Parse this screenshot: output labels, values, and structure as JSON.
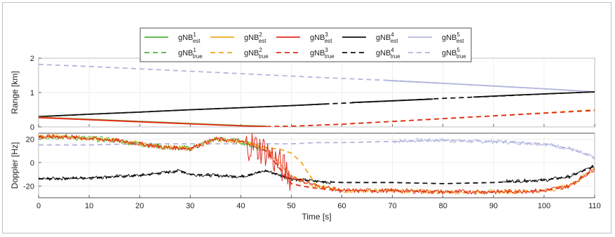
{
  "chart_data": [
    {
      "type": "line",
      "panel": "top",
      "ylabel": "Range [km]",
      "xlabel": "",
      "xlim": [
        0,
        110
      ],
      "ylim": [
        0,
        2
      ],
      "yticks": [
        0,
        1,
        2
      ],
      "xtick_labels_shown": false,
      "grid": true,
      "legend": {
        "placement": "top-center",
        "entries": [
          {
            "base": "gNB",
            "sup": "1",
            "sub": "est",
            "style": "solid",
            "color": "#4bb33a"
          },
          {
            "base": "gNB",
            "sup": "2",
            "sub": "est",
            "style": "solid",
            "color": "#f0a81c"
          },
          {
            "base": "gNB",
            "sup": "3",
            "sub": "est",
            "style": "solid",
            "color": "#e02b1b"
          },
          {
            "base": "gNB",
            "sup": "4",
            "sub": "est",
            "style": "solid",
            "color": "#111111"
          },
          {
            "base": "gNB",
            "sup": "5",
            "sub": "est",
            "style": "solid",
            "color": "#b3b6dd"
          },
          {
            "base": "gNB",
            "sup": "1",
            "sub": "true",
            "style": "dashed",
            "color": "#4bb33a"
          },
          {
            "base": "gNB",
            "sup": "2",
            "sub": "true",
            "style": "dashed",
            "color": "#f0a81c"
          },
          {
            "base": "gNB",
            "sup": "3",
            "sub": "true",
            "style": "dashed",
            "color": "#e02b1b"
          },
          {
            "base": "gNB",
            "sup": "4",
            "sub": "true",
            "style": "dashed",
            "color": "#111111"
          },
          {
            "base": "gNB",
            "sup": "5",
            "sub": "true",
            "style": "dashed",
            "color": "#b3b6dd"
          }
        ]
      },
      "series": [
        {
          "id": "r5_true",
          "style": "dashed",
          "color": "#b3b6dd",
          "x": [
            0,
            10,
            20,
            30,
            40,
            50,
            60,
            70,
            80,
            90,
            100,
            110
          ],
          "y": [
            1.82,
            1.76,
            1.69,
            1.62,
            1.55,
            1.48,
            1.41,
            1.35,
            1.27,
            1.19,
            1.11,
            1.02
          ]
        },
        {
          "id": "r5_est",
          "style": "solid",
          "color": "#b3b6dd",
          "x": [
            69,
            80,
            90,
            100,
            110
          ],
          "y": [
            1.35,
            1.27,
            1.19,
            1.11,
            1.02
          ]
        },
        {
          "id": "r4_true",
          "style": "dashed",
          "color": "#111111",
          "x": [
            0,
            10,
            20,
            30,
            40,
            50,
            60,
            70,
            80,
            90,
            100,
            110
          ],
          "y": [
            0.3,
            0.37,
            0.43,
            0.5,
            0.56,
            0.62,
            0.69,
            0.76,
            0.83,
            0.89,
            0.96,
            1.02
          ]
        },
        {
          "id": "r4_est",
          "style": "solid",
          "color": "#111111",
          "x": [
            0,
            10,
            20,
            30,
            40,
            50,
            57
          ],
          "y": [
            0.3,
            0.37,
            0.43,
            0.5,
            0.56,
            0.62,
            0.67
          ]
        },
        {
          "id": "r4_est_b",
          "style": "solid",
          "color": "#111111",
          "x": [
            62,
            70,
            78
          ],
          "y": [
            0.71,
            0.76,
            0.81
          ]
        },
        {
          "id": "r4_est_c",
          "style": "solid",
          "color": "#111111",
          "x": [
            86,
            95,
            105,
            110
          ],
          "y": [
            0.87,
            0.93,
            0.99,
            1.02
          ]
        },
        {
          "id": "r1_est",
          "style": "solid",
          "color": "#4bb33a",
          "x": [
            0,
            10,
            20,
            30,
            40,
            45
          ],
          "y": [
            0.28,
            0.22,
            0.16,
            0.1,
            0.04,
            0.02
          ]
        },
        {
          "id": "r2_est",
          "style": "solid",
          "color": "#f0a81c",
          "x": [
            0,
            10,
            20,
            30,
            40,
            45
          ],
          "y": [
            0.28,
            0.21,
            0.15,
            0.09,
            0.03,
            0.01
          ]
        },
        {
          "id": "r3_est",
          "style": "solid",
          "color": "#e02b1b",
          "x": [
            0,
            10,
            20,
            30,
            40,
            45
          ],
          "y": [
            0.27,
            0.21,
            0.15,
            0.09,
            0.03,
            0.01
          ]
        },
        {
          "id": "r2_true",
          "style": "dashed",
          "color": "#f0a81c",
          "x": [
            45,
            50,
            60,
            70,
            80,
            90,
            100,
            110
          ],
          "y": [
            0.01,
            0.02,
            0.08,
            0.16,
            0.24,
            0.32,
            0.41,
            0.5
          ]
        },
        {
          "id": "r3_true",
          "style": "dashed",
          "color": "#e02b1b",
          "x": [
            45,
            50,
            60,
            70,
            80,
            90,
            100,
            110
          ],
          "y": [
            0.01,
            0.02,
            0.08,
            0.16,
            0.24,
            0.32,
            0.4,
            0.48
          ]
        }
      ]
    },
    {
      "type": "line",
      "panel": "bottom",
      "ylabel": "Doppler [Hz]",
      "xlabel": "Time [s]",
      "xlim": [
        0,
        110
      ],
      "ylim": [
        -30,
        25
      ],
      "yticks": [
        -20,
        0,
        20
      ],
      "xticks": [
        0,
        10,
        20,
        30,
        40,
        50,
        60,
        70,
        80,
        90,
        100,
        110
      ],
      "grid": true,
      "series": [
        {
          "id": "d5_true",
          "style": "dashed",
          "color": "#b3b6dd",
          "x": [
            0,
            10,
            20,
            30,
            40,
            50,
            55,
            60,
            70,
            80,
            90,
            100,
            105,
            110
          ],
          "y": [
            15,
            15,
            16,
            16,
            16,
            16,
            17,
            17,
            18,
            19,
            18,
            16,
            12,
            4
          ]
        },
        {
          "id": "d5_est",
          "style": "solid",
          "color": "#b3b6dd",
          "noise": 1.8,
          "x": [
            70,
            75,
            80,
            85,
            90,
            95,
            100,
            105,
            110
          ],
          "y": [
            18,
            19,
            19,
            18,
            18,
            17,
            16,
            12,
            4
          ]
        },
        {
          "id": "d4_true",
          "style": "dashed",
          "color": "#111111",
          "x": [
            0,
            10,
            20,
            28,
            30,
            40,
            45,
            50,
            55,
            60,
            70,
            80,
            90,
            100,
            105,
            110
          ],
          "y": [
            -14,
            -13,
            -11,
            -7,
            -10,
            -12,
            -7,
            -14,
            -16,
            -17,
            -17,
            -18,
            -17,
            -15,
            -12,
            -3
          ]
        },
        {
          "id": "d4_est",
          "style": "solid",
          "color": "#111111",
          "noise": 1.5,
          "x": [
            0,
            10,
            20,
            28,
            30,
            40,
            45,
            50,
            55,
            58
          ],
          "y": [
            -14,
            -13,
            -11,
            -7,
            -10,
            -12,
            -7,
            -14,
            -16,
            -17
          ]
        },
        {
          "id": "d4_est_b",
          "style": "solid",
          "color": "#111111",
          "noise": 1.5,
          "x": [
            92,
            100,
            105,
            110
          ],
          "y": [
            -16,
            -15,
            -12,
            -3
          ]
        },
        {
          "id": "d2_true",
          "style": "dashed",
          "color": "#f0a81c",
          "x": [
            0,
            5,
            15,
            25,
            30,
            35,
            40,
            45,
            48,
            50,
            52,
            55,
            60,
            70,
            80,
            90,
            100,
            105,
            110
          ],
          "y": [
            23,
            22,
            19,
            13,
            12,
            20,
            18,
            13,
            11,
            8,
            0,
            -20,
            -24,
            -24,
            -25,
            -25,
            -24,
            -20,
            -5
          ]
        },
        {
          "id": "d3_true",
          "style": "dashed",
          "color": "#e02b1b",
          "x": [
            0,
            5,
            15,
            25,
            30,
            35,
            40,
            45,
            50,
            52,
            55,
            60,
            70,
            80,
            90,
            100,
            105,
            110
          ],
          "y": [
            22,
            22,
            19,
            13,
            12,
            20,
            18,
            10,
            -18,
            -20,
            -22,
            -24,
            -24,
            -25,
            -25,
            -24,
            -20,
            -5
          ]
        },
        {
          "id": "d1_est",
          "style": "solid",
          "color": "#4bb33a",
          "noise": 2.5,
          "x": [
            0,
            5,
            15,
            25,
            30,
            35,
            40,
            45
          ],
          "y": [
            22,
            22,
            19,
            13,
            12,
            20,
            18,
            10
          ]
        },
        {
          "id": "d2_est",
          "style": "solid",
          "color": "#f0a81c",
          "noise": 2.0,
          "x": [
            0,
            5,
            15,
            25,
            30,
            35,
            40,
            45,
            50,
            55,
            60,
            70,
            80,
            90,
            100,
            105,
            110
          ],
          "y": [
            22,
            22,
            19,
            13,
            12,
            20,
            18,
            12,
            -12,
            -20,
            -24,
            -24,
            -25,
            -25,
            -24,
            -20,
            -5
          ]
        },
        {
          "id": "d3_est",
          "style": "solid",
          "color": "#e02b1b",
          "noise": 2.0,
          "noise_burst": [
            41,
            50,
            14
          ],
          "x": [
            0,
            5,
            15,
            25,
            30,
            35,
            40,
            45,
            50,
            55,
            60,
            70,
            80,
            90,
            100,
            105,
            110
          ],
          "y": [
            22,
            22,
            19,
            13,
            12,
            20,
            18,
            10,
            -12,
            -20,
            -24,
            -24,
            -25,
            -25,
            -24,
            -20,
            -5
          ]
        }
      ]
    }
  ]
}
